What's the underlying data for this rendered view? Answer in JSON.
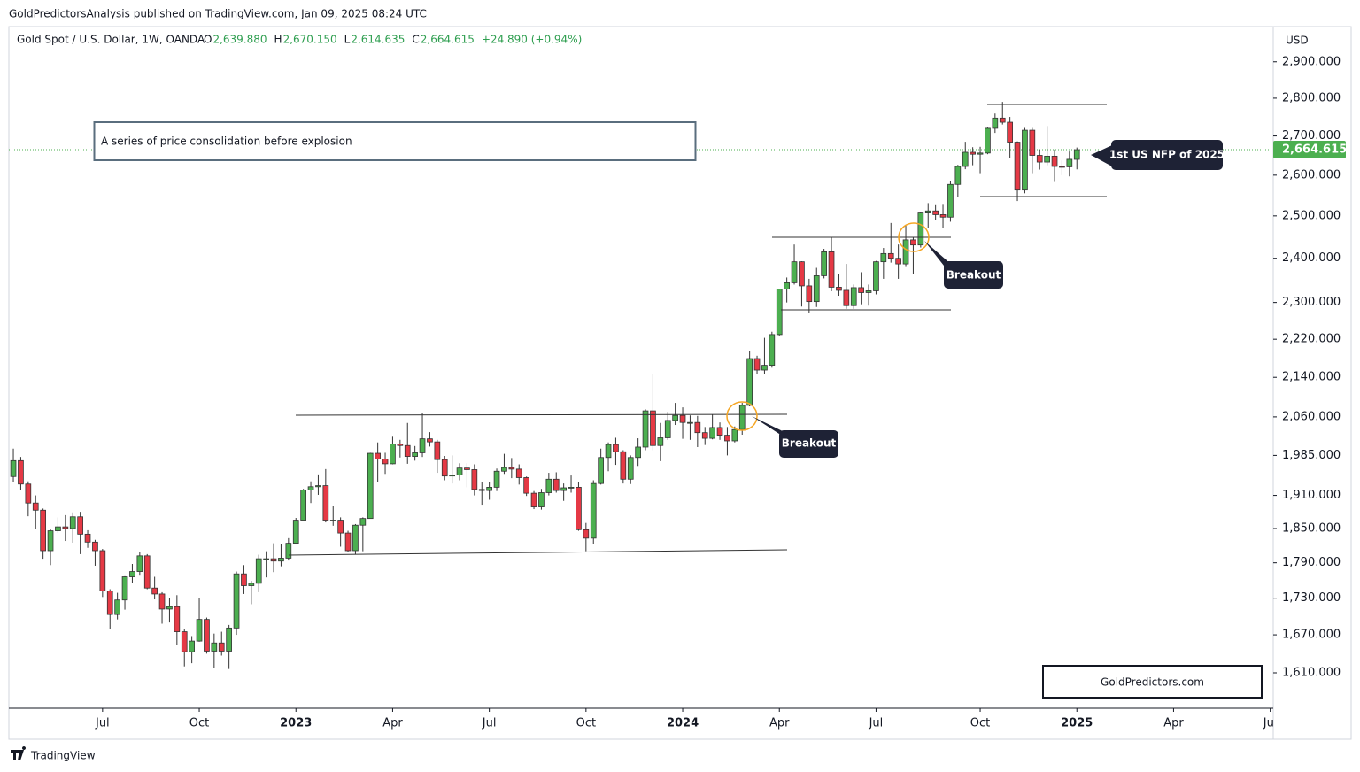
{
  "chart_data": {
    "type": "candlestick",
    "published": "GoldPredictorsAnalysis published on TradingView.com, Jan 09, 2025 08:24 UTC",
    "symbol": "Gold Spot / U.S. Dollar, 1W, OANDA",
    "ohlc_legend": [
      {
        "key": "O",
        "value": "2,639.880"
      },
      {
        "key": "H",
        "value": "2,670.150"
      },
      {
        "key": "L",
        "value": "2,614.635"
      },
      {
        "key": "C",
        "value": "2,664.615"
      }
    ],
    "change": "+24.890 (+0.94%)",
    "title": "A series of price consolidation before explosion",
    "annotations": [
      "Breakout",
      "Breakout",
      "1st US NFP of 2025"
    ],
    "watermark": "GoldPredictors.com",
    "currency": "USD",
    "brand": "TradingView",
    "last_price_label": "2,664.615",
    "up_color": "#4caf50",
    "down_color": "#e53945",
    "log_scale": true,
    "ylim": [
      1556,
      3000
    ],
    "yticks": [
      {
        "value": 2900,
        "label": "2,900.000"
      },
      {
        "value": 2800,
        "label": "2,800.000"
      },
      {
        "value": 2700,
        "label": "2,700.000"
      },
      {
        "value": 2600,
        "label": "2,600.000"
      },
      {
        "value": 2500,
        "label": "2,500.000"
      },
      {
        "value": 2400,
        "label": "2,400.000"
      },
      {
        "value": 2300,
        "label": "2,300.000"
      },
      {
        "value": 2220,
        "label": "2,220.000"
      },
      {
        "value": 2140,
        "label": "2,140.000"
      },
      {
        "value": 2060,
        "label": "2,060.000"
      },
      {
        "value": 1985,
        "label": "1,985.000"
      },
      {
        "value": 1910,
        "label": "1,910.000"
      },
      {
        "value": 1850,
        "label": "1,850.000"
      },
      {
        "value": 1790,
        "label": "1,790.000"
      },
      {
        "value": 1730,
        "label": "1,730.000"
      },
      {
        "value": 1670,
        "label": "1,670.000"
      },
      {
        "value": 1610,
        "label": "1,610.000"
      }
    ],
    "xlim": [
      -0.6,
      169.4
    ],
    "xticks": [
      {
        "value": 12,
        "label": "Jul"
      },
      {
        "value": 25,
        "label": "Oct"
      },
      {
        "value": 38,
        "label": "2023"
      },
      {
        "value": 51,
        "label": "Apr"
      },
      {
        "value": 64,
        "label": "Jul"
      },
      {
        "value": 77,
        "label": "Oct"
      },
      {
        "value": 90,
        "label": "2024"
      },
      {
        "value": 103,
        "label": "Apr"
      },
      {
        "value": 116,
        "label": "Jul"
      },
      {
        "value": 130,
        "label": "Oct"
      },
      {
        "value": 143,
        "label": "2025"
      },
      {
        "value": 156,
        "label": "Apr"
      },
      {
        "value": 169,
        "label": "Jul"
      }
    ],
    "ohlc": [
      [
        1945,
        1998,
        1935,
        1975
      ],
      [
        1975,
        1982,
        1920,
        1931
      ],
      [
        1931,
        1936,
        1872,
        1896
      ],
      [
        1896,
        1910,
        1850,
        1883
      ],
      [
        1883,
        1886,
        1797,
        1811
      ],
      [
        1811,
        1850,
        1786,
        1846
      ],
      [
        1846,
        1870,
        1842,
        1853
      ],
      [
        1853,
        1874,
        1828,
        1850
      ],
      [
        1850,
        1879,
        1825,
        1871
      ],
      [
        1871,
        1880,
        1805,
        1840
      ],
      [
        1840,
        1847,
        1816,
        1826
      ],
      [
        1826,
        1830,
        1785,
        1811
      ],
      [
        1811,
        1814,
        1732,
        1742
      ],
      [
        1742,
        1745,
        1680,
        1703
      ],
      [
        1703,
        1739,
        1695,
        1727
      ],
      [
        1727,
        1767,
        1711,
        1766
      ],
      [
        1766,
        1788,
        1755,
        1775
      ],
      [
        1775,
        1808,
        1768,
        1802
      ],
      [
        1802,
        1805,
        1745,
        1747
      ],
      [
        1747,
        1766,
        1728,
        1737
      ],
      [
        1737,
        1740,
        1688,
        1712
      ],
      [
        1712,
        1730,
        1690,
        1716
      ],
      [
        1716,
        1735,
        1654,
        1675
      ],
      [
        1675,
        1680,
        1620,
        1643
      ],
      [
        1643,
        1668,
        1625,
        1660
      ],
      [
        1660,
        1730,
        1659,
        1695
      ],
      [
        1695,
        1698,
        1640,
        1644
      ],
      [
        1644,
        1672,
        1618,
        1657
      ],
      [
        1657,
        1675,
        1637,
        1644
      ],
      [
        1644,
        1686,
        1616,
        1681
      ],
      [
        1681,
        1775,
        1670,
        1771
      ],
      [
        1771,
        1786,
        1737,
        1751
      ],
      [
        1751,
        1759,
        1720,
        1755
      ],
      [
        1755,
        1804,
        1740,
        1797
      ],
      [
        1797,
        1810,
        1765,
        1797
      ],
      [
        1797,
        1824,
        1774,
        1793
      ],
      [
        1793,
        1823,
        1784,
        1798
      ],
      [
        1798,
        1833,
        1794,
        1824
      ],
      [
        1824,
        1869,
        1822,
        1865
      ],
      [
        1865,
        1922,
        1865,
        1920
      ],
      [
        1920,
        1936,
        1896,
        1926
      ],
      [
        1926,
        1949,
        1911,
        1928
      ],
      [
        1928,
        1959,
        1861,
        1865
      ],
      [
        1865,
        1890,
        1855,
        1865
      ],
      [
        1865,
        1870,
        1818,
        1842
      ],
      [
        1842,
        1846,
        1809,
        1811
      ],
      [
        1811,
        1858,
        1804,
        1856
      ],
      [
        1856,
        1870,
        1810,
        1868
      ],
      [
        1868,
        1990,
        1868,
        1989
      ],
      [
        1989,
        2010,
        1934,
        1978
      ],
      [
        1978,
        1990,
        1950,
        1969
      ],
      [
        1969,
        2021,
        1968,
        2007
      ],
      [
        2007,
        2015,
        1981,
        2004
      ],
      [
        2004,
        2048,
        1969,
        1983
      ],
      [
        1983,
        2003,
        1975,
        1990
      ],
      [
        1990,
        2068,
        1982,
        2017
      ],
      [
        2017,
        2030,
        2002,
        2011
      ],
      [
        2011,
        2015,
        1952,
        1977
      ],
      [
        1977,
        1984,
        1938,
        1946
      ],
      [
        1946,
        1985,
        1932,
        1948
      ],
      [
        1948,
        1970,
        1938,
        1961
      ],
      [
        1961,
        1970,
        1925,
        1958
      ],
      [
        1958,
        1968,
        1910,
        1921
      ],
      [
        1921,
        1935,
        1893,
        1919
      ],
      [
        1919,
        1935,
        1902,
        1925
      ],
      [
        1925,
        1960,
        1918,
        1955
      ],
      [
        1955,
        1988,
        1950,
        1962
      ],
      [
        1962,
        1980,
        1942,
        1959
      ],
      [
        1959,
        1968,
        1930,
        1943
      ],
      [
        1943,
        1945,
        1909,
        1914
      ],
      [
        1914,
        1918,
        1885,
        1889
      ],
      [
        1889,
        1922,
        1884,
        1915
      ],
      [
        1915,
        1952,
        1910,
        1940
      ],
      [
        1940,
        1953,
        1915,
        1919
      ],
      [
        1919,
        1932,
        1900,
        1924
      ],
      [
        1924,
        1947,
        1915,
        1925
      ],
      [
        1925,
        1935,
        1846,
        1848
      ],
      [
        1848,
        1860,
        1810,
        1833
      ],
      [
        1833,
        1938,
        1823,
        1932
      ],
      [
        1932,
        1998,
        1930,
        1981
      ],
      [
        1981,
        2010,
        1955,
        2006
      ],
      [
        2006,
        2019,
        1967,
        1992
      ],
      [
        1992,
        1995,
        1932,
        1940
      ],
      [
        1940,
        1985,
        1931,
        1981
      ],
      [
        1981,
        2018,
        1965,
        2001
      ],
      [
        2001,
        2075,
        1995,
        2072
      ],
      [
        2072,
        2146,
        1995,
        2004
      ],
      [
        2004,
        2048,
        1974,
        2019
      ],
      [
        2019,
        2070,
        2015,
        2053
      ],
      [
        2053,
        2088,
        2044,
        2063
      ],
      [
        2063,
        2079,
        2017,
        2049
      ],
      [
        2049,
        2063,
        2015,
        2049
      ],
      [
        2049,
        2062,
        2001,
        2029
      ],
      [
        2029,
        2040,
        2005,
        2018
      ],
      [
        2018,
        2065,
        2016,
        2039
      ],
      [
        2039,
        2049,
        2015,
        2024
      ],
      [
        2024,
        2040,
        1985,
        2013
      ],
      [
        2013,
        2041,
        2010,
        2035
      ],
      [
        2035,
        2088,
        2025,
        2083
      ],
      [
        2083,
        2195,
        2081,
        2179
      ],
      [
        2179,
        2185,
        2146,
        2155
      ],
      [
        2155,
        2223,
        2146,
        2165
      ],
      [
        2165,
        2236,
        2160,
        2230
      ],
      [
        2230,
        2330,
        2228,
        2330
      ],
      [
        2330,
        2356,
        2300,
        2344
      ],
      [
        2344,
        2432,
        2340,
        2392
      ],
      [
        2392,
        2393,
        2291,
        2337
      ],
      [
        2337,
        2353,
        2277,
        2302
      ],
      [
        2302,
        2378,
        2290,
        2360
      ],
      [
        2360,
        2422,
        2354,
        2415
      ],
      [
        2415,
        2450,
        2325,
        2334
      ],
      [
        2334,
        2364,
        2315,
        2327
      ],
      [
        2327,
        2387,
        2286,
        2293
      ],
      [
        2293,
        2340,
        2286,
        2333
      ],
      [
        2333,
        2368,
        2296,
        2322
      ],
      [
        2322,
        2340,
        2293,
        2326
      ],
      [
        2326,
        2394,
        2318,
        2392
      ],
      [
        2392,
        2424,
        2353,
        2411
      ],
      [
        2411,
        2483,
        2390,
        2400
      ],
      [
        2400,
        2432,
        2353,
        2387
      ],
      [
        2387,
        2477,
        2380,
        2443
      ],
      [
        2443,
        2448,
        2364,
        2431
      ],
      [
        2431,
        2509,
        2425,
        2507
      ],
      [
        2507,
        2531,
        2470,
        2512
      ],
      [
        2512,
        2528,
        2490,
        2503
      ],
      [
        2503,
        2529,
        2472,
        2497
      ],
      [
        2497,
        2585,
        2486,
        2577
      ],
      [
        2577,
        2626,
        2547,
        2622
      ],
      [
        2622,
        2685,
        2615,
        2658
      ],
      [
        2658,
        2671,
        2625,
        2653
      ],
      [
        2653,
        2672,
        2605,
        2656
      ],
      [
        2656,
        2722,
        2653,
        2720
      ],
      [
        2720,
        2759,
        2708,
        2747
      ],
      [
        2747,
        2790,
        2730,
        2736
      ],
      [
        2736,
        2750,
        2643,
        2684
      ],
      [
        2684,
        2686,
        2536,
        2563
      ],
      [
        2563,
        2721,
        2555,
        2715
      ],
      [
        2715,
        2721,
        2605,
        2650
      ],
      [
        2650,
        2665,
        2614,
        2633
      ],
      [
        2633,
        2726,
        2625,
        2648
      ],
      [
        2648,
        2665,
        2583,
        2622
      ],
      [
        2622,
        2637,
        2600,
        2621
      ],
      [
        2621,
        2660,
        2597,
        2640
      ],
      [
        2639.88,
        2670.15,
        2614.635,
        2664.615
      ]
    ]
  }
}
